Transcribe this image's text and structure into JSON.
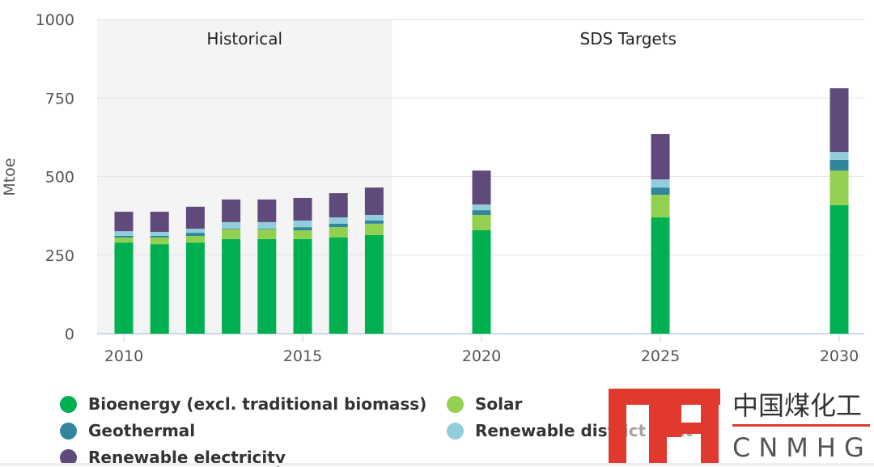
{
  "chart_data": {
    "type": "bar",
    "stacked": true,
    "ylabel": "Mtoe",
    "xlabel": "",
    "ylim": [
      0,
      1000
    ],
    "yticks": [
      "0",
      "250",
      "500",
      "750",
      "1000"
    ],
    "xticks": [
      "2010",
      "2015",
      "2020",
      "2025",
      "2030"
    ],
    "grid": true,
    "legend_position": "bottom",
    "regions": [
      {
        "label": "Historical",
        "from": 2009.25,
        "to": 2017.5,
        "shaded": true
      },
      {
        "label": "SDS Targets",
        "from": 2017.5,
        "to": 2030.75,
        "shaded": false
      }
    ],
    "categories": [
      2010,
      2011,
      2012,
      2013,
      2014,
      2015,
      2016,
      2017,
      2020,
      2025,
      2030
    ],
    "series": [
      {
        "name": "Bioenergy (excl. traditional biomass)",
        "color": "#00b050",
        "values": [
          290,
          285,
          290,
          301,
          301,
          301,
          306,
          314,
          329,
          370,
          409
        ]
      },
      {
        "name": "Solar",
        "color": "#92d050",
        "values": [
          16,
          21,
          21,
          31,
          31,
          28,
          33,
          36,
          49,
          72,
          110
        ]
      },
      {
        "name": "Geothermal",
        "color": "#31859c",
        "values": [
          5,
          5,
          10,
          2,
          2,
          10,
          11,
          10,
          15,
          23,
          34
        ]
      },
      {
        "name": "Renewable district heat",
        "color": "#92cddc",
        "values": [
          15,
          13,
          13,
          21,
          21,
          21,
          20,
          18,
          18,
          26,
          25
        ]
      },
      {
        "name": "Renewable electricity",
        "color": "#604a7b",
        "values": [
          62,
          64,
          70,
          72,
          72,
          72,
          77,
          87,
          108,
          144,
          203
        ]
      }
    ]
  },
  "watermark": {
    "text_cn": "中国煤化工",
    "text_en": "CNMHG",
    "color": "#e03a2f"
  }
}
